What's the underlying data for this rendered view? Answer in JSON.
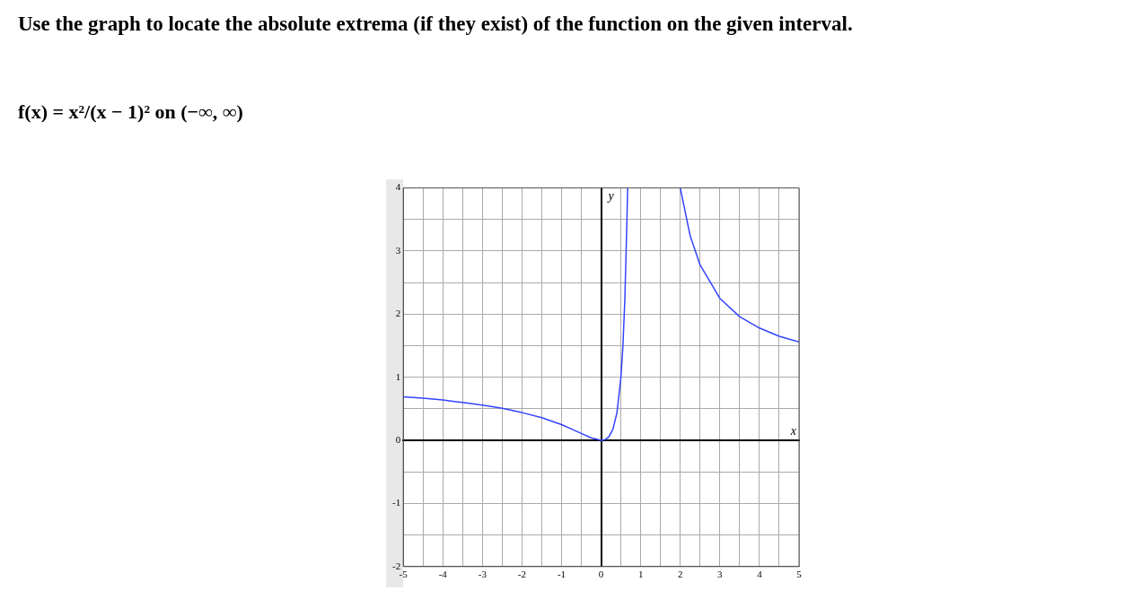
{
  "chart_data": {
    "type": "line",
    "title": "Use the graph to locate the absolute extrema (if they exist) of the function on the given interval.",
    "subtitle": "f(x) = x²/(x − 1)² on (−∞, ∞)",
    "series": [
      {
        "color": "#3344ff",
        "x": [
          -5,
          -4.5,
          -4,
          -3.5,
          -3,
          -2.5,
          -2,
          -1.5,
          -1,
          -0.75,
          -0.5,
          -0.25,
          0,
          0.1,
          0.2,
          0.3,
          0.4,
          0.5,
          0.55,
          0.6,
          0.65,
          0.67,
          1,
          2,
          2.25,
          2.5,
          3,
          3.5,
          4,
          4.5,
          5
        ],
        "values": [
          0.69,
          0.67,
          0.64,
          0.6,
          0.56,
          0.51,
          0.44,
          0.36,
          0.25,
          0.18,
          0.11,
          0.04,
          0,
          0.01,
          0.06,
          0.18,
          0.44,
          1,
          1.49,
          2.25,
          3.45,
          4,
          null,
          4,
          3.24,
          2.78,
          2.25,
          1.96,
          1.78,
          1.65,
          1.56
        ]
      }
    ],
    "xlim": [
      -5,
      5
    ],
    "ylim": [
      -2,
      4
    ],
    "xticks": [
      -5,
      {
        "value": -4.5,
        "label": null
      },
      -4,
      {
        "value": -3.5,
        "label": null
      },
      -3,
      {
        "value": -2.5,
        "label": null
      },
      -2,
      {
        "value": -1.5,
        "label": null
      },
      -1,
      {
        "value": -0.5,
        "label": null
      },
      0,
      {
        "value": 0.5,
        "label": null
      },
      1,
      {
        "value": 1.5,
        "label": null
      },
      2,
      {
        "value": 2.5,
        "label": null
      },
      3,
      {
        "value": 3.5,
        "label": null
      },
      4,
      {
        "value": 4.5,
        "label": null
      },
      5
    ],
    "yticks": [
      -2,
      {
        "value": -1.5,
        "label": null
      },
      -1,
      {
        "value": -0.5,
        "label": null
      },
      0,
      {
        "value": 0.5,
        "label": null
      },
      1,
      {
        "value": 1.5,
        "label": null
      },
      2,
      {
        "value": 2.5,
        "label": null
      },
      3,
      {
        "value": 3.5,
        "label": null
      },
      4
    ],
    "grid": true,
    "legend": false,
    "marker": "none",
    "line_style": "solid",
    "annotations": [
      "y",
      "x"
    ]
  }
}
